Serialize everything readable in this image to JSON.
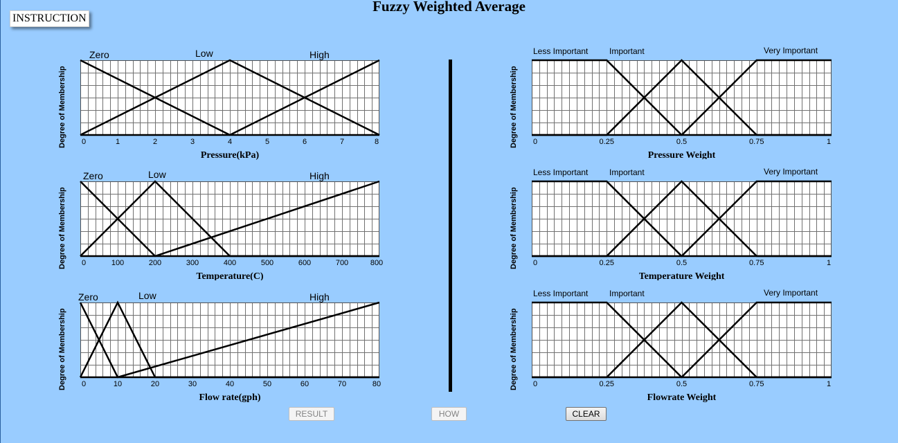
{
  "page": {
    "title": "Fuzzy Weighted Average",
    "instruction_label": "INSTRUCTION",
    "y_axis_label": "Degree of Membership"
  },
  "buttons": {
    "result": "RESULT",
    "how": "HOW",
    "clear": "CLEAR"
  },
  "chart_data": [
    {
      "type": "line",
      "xlabel": "Pressure(kPa)",
      "ylabel": "Degree of Membership",
      "ticks": [
        "0",
        "1",
        "2",
        "3",
        "4",
        "5",
        "6",
        "7",
        "8"
      ],
      "xlim": [
        0,
        8
      ],
      "ylim": [
        0,
        1
      ],
      "grid": true,
      "series": [
        {
          "name": "Zero",
          "x": [
            0,
            4,
            8
          ],
          "y": [
            1,
            0,
            0
          ]
        },
        {
          "name": "Low",
          "x": [
            0,
            4,
            8
          ],
          "y": [
            0,
            1,
            0
          ]
        },
        {
          "name": "High",
          "x": [
            0,
            4,
            8
          ],
          "y": [
            0,
            0,
            1
          ]
        }
      ]
    },
    {
      "type": "line",
      "xlabel": "Temperature(C)",
      "ylabel": "Degree of Membership",
      "ticks": [
        "0",
        "100",
        "200",
        "300",
        "400",
        "500",
        "600",
        "700",
        "800"
      ],
      "xlim": [
        0,
        800
      ],
      "ylim": [
        0,
        1
      ],
      "grid": true,
      "series": [
        {
          "name": "Zero",
          "x": [
            0,
            200,
            800
          ],
          "y": [
            1,
            0,
            0
          ]
        },
        {
          "name": "Low",
          "x": [
            0,
            200,
            400,
            800
          ],
          "y": [
            0,
            1,
            0,
            0
          ]
        },
        {
          "name": "High",
          "x": [
            0,
            200,
            800
          ],
          "y": [
            0,
            0,
            1
          ]
        }
      ]
    },
    {
      "type": "line",
      "xlabel": "Flow rate(gph)",
      "ylabel": "Degree of Membership",
      "ticks": [
        "0",
        "10",
        "20",
        "30",
        "40",
        "50",
        "60",
        "70",
        "80"
      ],
      "xlim": [
        0,
        80
      ],
      "ylim": [
        0,
        1
      ],
      "grid": true,
      "series": [
        {
          "name": "Zero",
          "x": [
            0,
            10,
            80
          ],
          "y": [
            1,
            0,
            0
          ]
        },
        {
          "name": "Low",
          "x": [
            0,
            10,
            20,
            80
          ],
          "y": [
            0,
            1,
            0,
            0
          ]
        },
        {
          "name": "High",
          "x": [
            0,
            10,
            80
          ],
          "y": [
            0,
            0,
            1
          ]
        }
      ]
    },
    {
      "type": "line",
      "xlabel": "Pressure Weight",
      "ylabel": "Degree of Membership",
      "ticks": [
        "0",
        "0.25",
        "0.5",
        "0.75",
        "1"
      ],
      "xlim": [
        0,
        1
      ],
      "ylim": [
        0,
        1
      ],
      "grid": true,
      "series": [
        {
          "name": "Less Important",
          "x": [
            0,
            0.25,
            0.5,
            1
          ],
          "y": [
            1,
            1,
            0,
            0
          ]
        },
        {
          "name": "Important",
          "x": [
            0,
            0.25,
            0.5,
            0.75,
            1
          ],
          "y": [
            0,
            0,
            1,
            0,
            0
          ]
        },
        {
          "name": "Very Important",
          "x": [
            0,
            0.5,
            0.75,
            1
          ],
          "y": [
            0,
            0,
            1,
            1
          ]
        }
      ]
    },
    {
      "type": "line",
      "xlabel": "Temperature Weight",
      "ylabel": "Degree of Membership",
      "ticks": [
        "0",
        "0.25",
        "0.5",
        "0.75",
        "1"
      ],
      "xlim": [
        0,
        1
      ],
      "ylim": [
        0,
        1
      ],
      "grid": true,
      "series": [
        {
          "name": "Less Important",
          "x": [
            0,
            0.25,
            0.5,
            1
          ],
          "y": [
            1,
            1,
            0,
            0
          ]
        },
        {
          "name": "Important",
          "x": [
            0,
            0.25,
            0.5,
            0.75,
            1
          ],
          "y": [
            0,
            0,
            1,
            0,
            0
          ]
        },
        {
          "name": "Very Important",
          "x": [
            0,
            0.5,
            0.75,
            1
          ],
          "y": [
            0,
            0,
            1,
            1
          ]
        }
      ]
    },
    {
      "type": "line",
      "xlabel": "Flowrate Weight",
      "ylabel": "Degree of Membership",
      "ticks": [
        "0",
        "0.25",
        "0.5",
        "0.75",
        "1"
      ],
      "xlim": [
        0,
        1
      ],
      "ylim": [
        0,
        1
      ],
      "grid": true,
      "series": [
        {
          "name": "Less Important",
          "x": [
            0,
            0.25,
            0.5,
            1
          ],
          "y": [
            1,
            1,
            0,
            0
          ]
        },
        {
          "name": "Important",
          "x": [
            0,
            0.25,
            0.5,
            0.75,
            1
          ],
          "y": [
            0,
            0,
            1,
            0,
            0
          ]
        },
        {
          "name": "Very Important",
          "x": [
            0,
            0.5,
            0.75,
            1
          ],
          "y": [
            0,
            0,
            1,
            1
          ]
        }
      ]
    }
  ]
}
